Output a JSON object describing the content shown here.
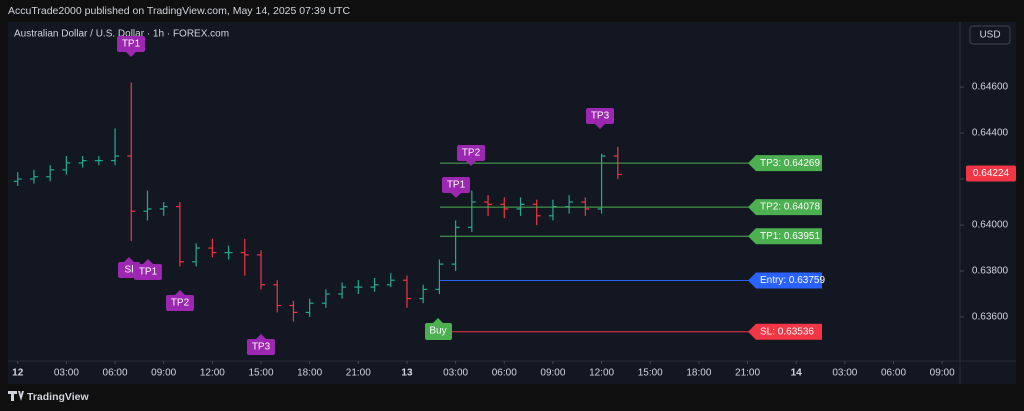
{
  "header": {
    "text": "AccuTrade2000 published on TradingView.com, May 14, 2025 07:39 UTC"
  },
  "footer": {
    "brand": "TradingView"
  },
  "chart_data": {
    "type": "ohlc",
    "title": "Australian Dollar / U.S. Dollar · 1h · FOREX.com",
    "currency": "USD",
    "up_color": "#22ab94",
    "down_color": "#f23645",
    "grid": false,
    "x": [
      0,
      1,
      2,
      3,
      4,
      5,
      6,
      7,
      8,
      9,
      10,
      11,
      12,
      13,
      14,
      15,
      16,
      17,
      18,
      19,
      20,
      21,
      22,
      23,
      24,
      25,
      26,
      27,
      28,
      29,
      30,
      31,
      32,
      33,
      34,
      35,
      36,
      37
    ],
    "open": [
      0.6419,
      0.642,
      0.6421,
      0.6424,
      0.6427,
      0.6428,
      0.6428,
      0.643,
      0.6406,
      0.6407,
      0.6408,
      0.6384,
      0.639,
      0.6388,
      0.6388,
      0.6387,
      0.6374,
      0.6365,
      0.6362,
      0.6366,
      0.637,
      0.6373,
      0.6373,
      0.6374,
      0.6376,
      0.6368,
      0.6372,
      0.6383,
      0.6399,
      0.641,
      0.6409,
      0.6407,
      0.6409,
      0.6404,
      0.6408,
      0.641,
      0.6407,
      0.643
    ],
    "high": [
      0.6423,
      0.6424,
      0.6426,
      0.643,
      0.643,
      0.643,
      0.6442,
      0.6462,
      0.6415,
      0.641,
      0.641,
      0.6392,
      0.6394,
      0.6391,
      0.6394,
      0.6389,
      0.6376,
      0.6367,
      0.6368,
      0.6372,
      0.6375,
      0.6376,
      0.6377,
      0.6379,
      0.6378,
      0.6374,
      0.6385,
      0.6402,
      0.6415,
      0.6413,
      0.6412,
      0.6412,
      0.6411,
      0.6411,
      0.6413,
      0.6412,
      0.6431,
      0.6434
    ],
    "low": [
      0.6417,
      0.6418,
      0.6419,
      0.6422,
      0.6425,
      0.6426,
      0.6426,
      0.6393,
      0.6402,
      0.6404,
      0.6382,
      0.6382,
      0.6386,
      0.6385,
      0.6378,
      0.6372,
      0.6362,
      0.6358,
      0.636,
      0.6364,
      0.6368,
      0.637,
      0.6371,
      0.6373,
      0.6364,
      0.6366,
      0.637,
      0.638,
      0.6397,
      0.6404,
      0.6403,
      0.6404,
      0.64,
      0.6402,
      0.6405,
      0.6404,
      0.6405,
      0.642
    ],
    "close": [
      0.642,
      0.6421,
      0.6424,
      0.6427,
      0.6428,
      0.6428,
      0.643,
      0.6406,
      0.6407,
      0.6408,
      0.6384,
      0.639,
      0.6388,
      0.6388,
      0.6387,
      0.6374,
      0.6365,
      0.6362,
      0.6366,
      0.637,
      0.6373,
      0.6373,
      0.6374,
      0.6376,
      0.6368,
      0.6372,
      0.6383,
      0.6399,
      0.641,
      0.6409,
      0.6407,
      0.6409,
      0.6404,
      0.6408,
      0.641,
      0.6407,
      0.643,
      0.6422
    ],
    "xlim": [
      -0.6,
      58.1
    ],
    "xticks": [
      {
        "value": 0,
        "label": "12"
      },
      {
        "value": 3,
        "label": "03:00"
      },
      {
        "value": 6,
        "label": "06:00"
      },
      {
        "value": 9,
        "label": "09:00"
      },
      {
        "value": 12,
        "label": "12:00"
      },
      {
        "value": 15,
        "label": "15:00"
      },
      {
        "value": 18,
        "label": "18:00"
      },
      {
        "value": 21,
        "label": "21:00"
      },
      {
        "value": 24,
        "label": "13"
      },
      {
        "value": 27,
        "label": "03:00"
      },
      {
        "value": 30,
        "label": "06:00"
      },
      {
        "value": 33,
        "label": "09:00"
      },
      {
        "value": 36,
        "label": "12:00"
      },
      {
        "value": 39,
        "label": "15:00"
      },
      {
        "value": 42,
        "label": "18:00"
      },
      {
        "value": 45,
        "label": "21:00"
      },
      {
        "value": 48,
        "label": "14"
      },
      {
        "value": 51,
        "label": "03:00"
      },
      {
        "value": 54,
        "label": "06:00"
      },
      {
        "value": 57,
        "label": "09:00"
      }
    ],
    "ylim": [
      0.63413,
      0.64883
    ],
    "yticks": [
      {
        "value": 0.646,
        "label": "0.64600"
      },
      {
        "value": 0.644,
        "label": "0.64400"
      },
      {
        "value": 0.642,
        "label": "0.64200"
      },
      {
        "value": 0.64,
        "label": "0.64000"
      },
      {
        "value": 0.638,
        "label": "0.63800"
      },
      {
        "value": 0.636,
        "label": "0.63600"
      }
    ],
    "last_price": 0.64224,
    "levels": [
      {
        "value": 0.64269,
        "value_label": "TP3: 0.64269",
        "color": "#4caf50"
      },
      {
        "value": 0.64078,
        "value_label": "TP2: 0.64078",
        "color": "#4caf50"
      },
      {
        "value": 0.63951,
        "value_label": "TP1: 0.63951",
        "color": "#4caf50"
      },
      {
        "value": 0.63759,
        "value_label": "Entry: 0.63759",
        "color": "#2962ff"
      },
      {
        "value": 0.63536,
        "value_label": "SL: 0.63536",
        "color": "#f23645"
      }
    ],
    "annotations": [
      "TP1",
      "Sl",
      "TP1",
      "TP2",
      "TP3",
      "Buy",
      "TP1",
      "TP2",
      "TP3"
    ]
  }
}
